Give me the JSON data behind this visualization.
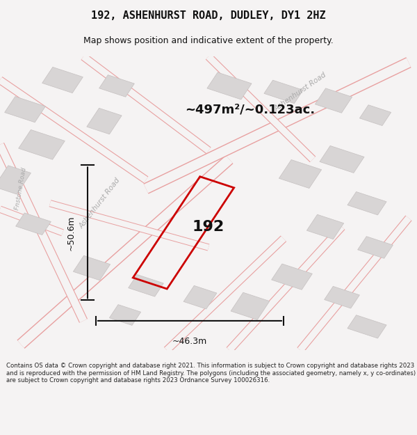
{
  "title": "192, ASHENHURST ROAD, DUDLEY, DY1 2HZ",
  "subtitle": "Map shows position and indicative extent of the property.",
  "area_text": "~497m²/~0.123ac.",
  "property_number": "192",
  "dim_width": "~46.3m",
  "dim_height": "~50.6m",
  "road_label_1": "Ashenhurst Road",
  "road_label_2": "Ashenhurst Road",
  "road_label_3": "Fnstone Road",
  "copyright_text": "Contains OS data © Crown copyright and database right 2021. This information is subject to Crown copyright and database rights 2023 and is reproduced with the permission of HM Land Registry. The polygons (including the associated geometry, namely x, y co-ordinates) are subject to Crown copyright and database rights 2023 Ordnance Survey 100026316.",
  "bg_color": "#f0eeee",
  "map_bg": "#f5f3f3",
  "building_fill": "#d8d5d5",
  "building_stroke": "#c0baba",
  "road_fill": "#ffffff",
  "road_stroke": "#e8a0a0",
  "property_stroke": "#cc0000",
  "dim_color": "#111111",
  "title_color": "#111111",
  "text_color": "#333333"
}
